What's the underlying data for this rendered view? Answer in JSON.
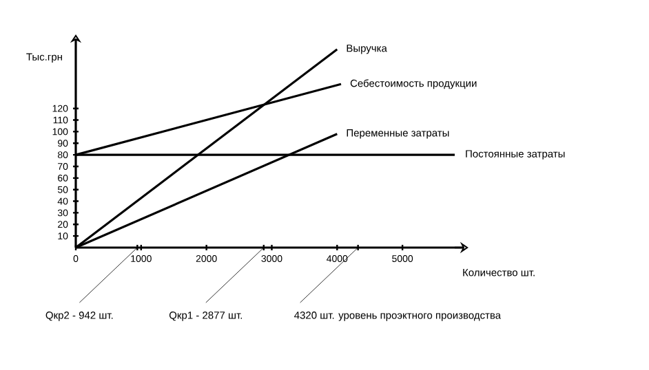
{
  "chart_data": {
    "type": "line",
    "xlabel": "Количество шт.",
    "ylabel": "Тыс.грн",
    "xlim": [
      0,
      5800
    ],
    "ylim": [
      0,
      172
    ],
    "xticks": [
      0,
      {
        "value": 942,
        "label": null
      },
      1000,
      2000,
      {
        "value": 2877,
        "label": null
      },
      3000,
      4000,
      {
        "value": 4320,
        "label": null
      },
      5000
    ],
    "yticks": [
      10,
      20,
      30,
      40,
      50,
      60,
      70,
      80,
      90,
      100,
      110,
      120
    ],
    "series": [
      {
        "name": "Выручка",
        "color": "#000000",
        "x": [
          0,
          4000
        ],
        "values": [
          0,
          171
        ]
      },
      {
        "name": "Себестоимость продукции",
        "color": "#000000",
        "x": [
          0,
          4060
        ],
        "values": [
          80,
          141
        ]
      },
      {
        "name": "Переменные затраты",
        "color": "#000000",
        "x": [
          0,
          4000
        ],
        "values": [
          0,
          98
        ]
      }
    ],
    "ref_lines": [
      {
        "axis": "y",
        "value": 80,
        "label": "Постоянные затраты",
        "color": "#000000"
      }
    ],
    "annotations": [
      "Qкр2 - 942 шт.",
      "Qкр1 - 2877 шт.",
      "4320 шт. уровень проэктного производства"
    ]
  }
}
